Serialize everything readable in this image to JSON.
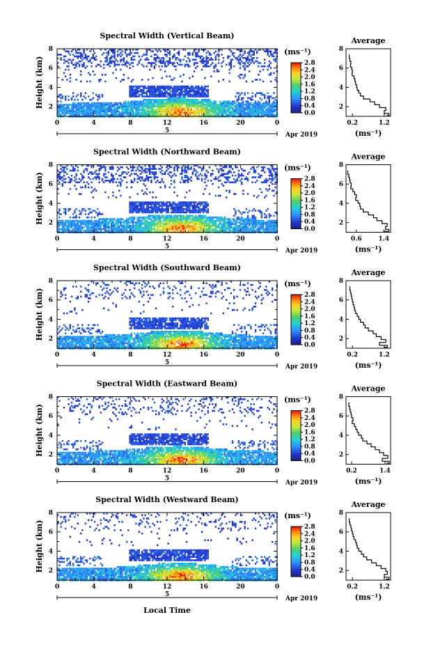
{
  "figure": {
    "xlabel": "Local Time",
    "date_label": "Apr 2019",
    "day_label": "5"
  },
  "chart_data": [
    {
      "type": "heatmap",
      "title": "Spectral Width (Vertical Beam)",
      "ylabel": "Height (km)",
      "xlim": [
        0,
        24
      ],
      "ylim": [
        1,
        8
      ],
      "xticks": [
        "0",
        "4",
        "8",
        "12",
        "16",
        "20",
        "0"
      ],
      "yticks": [
        "2",
        "4",
        "6",
        "8"
      ],
      "cbar": {
        "unit": "(ms⁻¹)",
        "ticks": [
          "0.0",
          "0.4",
          "0.8",
          "1.2",
          "1.6",
          "2.0",
          "2.4",
          "2.8"
        ]
      },
      "profile": {
        "title": "Average",
        "xlabel": "(ms⁻¹)",
        "xticks": [
          "0.2",
          "1.2"
        ],
        "yticks": [
          "2",
          "4",
          "6",
          "8"
        ],
        "xlim": [
          0,
          1.4
        ],
        "ylim": [
          1,
          8
        ],
        "x": [
          0.1,
          0.12,
          0.15,
          0.14,
          0.18,
          0.2,
          0.19,
          0.25,
          0.28,
          0.3,
          0.33,
          0.35,
          0.4,
          0.45,
          0.55,
          0.75,
          0.9,
          1.05,
          1.25,
          1.2,
          1.35,
          1.28
        ],
        "y": [
          7.4,
          7.0,
          6.7,
          6.4,
          6.1,
          5.8,
          5.5,
          5.2,
          4.9,
          4.6,
          4.3,
          4.0,
          3.7,
          3.4,
          3.1,
          2.8,
          2.5,
          2.2,
          1.9,
          1.6,
          1.3,
          1.1
        ]
      }
    },
    {
      "type": "heatmap",
      "title": "Spectral Width (Northward Beam)",
      "ylabel": "Height (km)",
      "xlim": [
        0,
        24
      ],
      "ylim": [
        1,
        8
      ],
      "xticks": [
        "0",
        "4",
        "8",
        "12",
        "16",
        "20",
        "0"
      ],
      "yticks": [
        "2",
        "4",
        "6",
        "8"
      ],
      "cbar": {
        "unit": "(ms⁻¹)",
        "ticks": [
          "0.0",
          "0.4",
          "0.8",
          "1.2",
          "1.6",
          "2.0",
          "2.4",
          "2.8"
        ]
      },
      "profile": {
        "title": "Average",
        "xlabel": "(ms⁻¹)",
        "xticks": [
          "0.6",
          "1.4"
        ],
        "yticks": [
          "2",
          "4",
          "6",
          "8"
        ],
        "xlim": [
          0.3,
          1.6
        ],
        "ylim": [
          1,
          8
        ],
        "x": [
          0.35,
          0.38,
          0.4,
          0.42,
          0.45,
          0.44,
          0.5,
          0.55,
          0.6,
          0.58,
          0.65,
          0.7,
          0.72,
          0.8,
          0.95,
          1.1,
          1.2,
          1.35,
          1.5,
          1.45,
          1.55,
          1.4
        ],
        "y": [
          7.4,
          7.0,
          6.7,
          6.4,
          6.1,
          5.8,
          5.5,
          5.2,
          4.9,
          4.6,
          4.3,
          4.0,
          3.7,
          3.4,
          3.1,
          2.8,
          2.5,
          2.2,
          1.9,
          1.6,
          1.3,
          1.1
        ]
      }
    },
    {
      "type": "heatmap",
      "title": "Spectral Width (Southward Beam)",
      "ylabel": "Height (km)",
      "xlim": [
        0,
        24
      ],
      "ylim": [
        1,
        8
      ],
      "xticks": [
        "0",
        "4",
        "8",
        "12",
        "16",
        "20",
        "0"
      ],
      "yticks": [
        "2",
        "4",
        "6",
        "8"
      ],
      "cbar": {
        "unit": "(ms⁻¹)",
        "ticks": [
          "0.0",
          "0.4",
          "0.8",
          "1.2",
          "1.6",
          "2.0",
          "2.4",
          "2.8"
        ]
      },
      "profile": {
        "title": "Average",
        "xlabel": "(ms⁻¹)",
        "xticks": [
          "0.2",
          "1.2"
        ],
        "yticks": [
          "2",
          "4",
          "6",
          "8"
        ],
        "xlim": [
          0,
          1.4
        ],
        "ylim": [
          1,
          8
        ],
        "x": [
          0.12,
          0.14,
          0.16,
          0.18,
          0.2,
          0.22,
          0.25,
          0.27,
          0.3,
          0.35,
          0.4,
          0.45,
          0.55,
          0.6,
          0.7,
          0.85,
          0.95,
          1.1,
          1.25,
          1.05,
          1.3,
          1.2
        ],
        "y": [
          7.4,
          7.0,
          6.7,
          6.4,
          6.1,
          5.8,
          5.5,
          5.2,
          4.9,
          4.6,
          4.3,
          4.0,
          3.7,
          3.4,
          3.1,
          2.8,
          2.5,
          2.2,
          1.9,
          1.6,
          1.3,
          1.1
        ]
      }
    },
    {
      "type": "heatmap",
      "title": "Spectral Width (Eastward Beam)",
      "ylabel": "Height (km)",
      "xlim": [
        0,
        24
      ],
      "ylim": [
        1,
        8
      ],
      "xticks": [
        "0",
        "4",
        "8",
        "12",
        "16",
        "20",
        "0"
      ],
      "yticks": [
        "2",
        "4",
        "6",
        "8"
      ],
      "cbar": {
        "unit": "(ms⁻¹)",
        "ticks": [
          "0.0",
          "0.4",
          "0.8",
          "1.2",
          "1.6",
          "2.0",
          "2.4",
          "2.8"
        ]
      },
      "profile": {
        "title": "Average",
        "xlabel": "(ms⁻¹)",
        "xticks": [
          "0.2",
          "1.4"
        ],
        "yticks": [
          "2",
          "4",
          "6",
          "8"
        ],
        "xlim": [
          0,
          1.6
        ],
        "ylim": [
          1,
          8
        ],
        "x": [
          0.1,
          0.13,
          0.15,
          0.18,
          0.2,
          0.25,
          0.22,
          0.3,
          0.35,
          0.4,
          0.45,
          0.55,
          0.6,
          0.75,
          0.9,
          1.05,
          1.2,
          1.35,
          1.5,
          1.3,
          1.55,
          1.45
        ],
        "y": [
          7.4,
          7.0,
          6.7,
          6.4,
          6.1,
          5.8,
          5.5,
          5.2,
          4.9,
          4.6,
          4.3,
          4.0,
          3.7,
          3.4,
          3.1,
          2.8,
          2.5,
          2.2,
          1.9,
          1.6,
          1.3,
          1.1
        ]
      }
    },
    {
      "type": "heatmap",
      "title": "Spectral Width (Westward Beam)",
      "ylabel": "Height (km)",
      "xlim": [
        0,
        24
      ],
      "ylim": [
        1,
        8
      ],
      "xticks": [
        "0",
        "4",
        "8",
        "12",
        "16",
        "20",
        "0"
      ],
      "yticks": [
        "2",
        "4",
        "6",
        "8"
      ],
      "cbar": {
        "unit": "(ms⁻¹)",
        "ticks": [
          "0.0",
          "0.4",
          "0.8",
          "1.2",
          "1.6",
          "2.0",
          "2.4",
          "2.8"
        ]
      },
      "profile": {
        "title": "Average",
        "xlabel": "(ms⁻¹)",
        "xticks": [
          "0.2",
          "1.2"
        ],
        "yticks": [
          "2",
          "4",
          "6",
          "8"
        ],
        "xlim": [
          0,
          1.4
        ],
        "ylim": [
          1,
          8
        ],
        "x": [
          0.1,
          0.12,
          0.15,
          0.17,
          0.2,
          0.22,
          0.25,
          0.3,
          0.33,
          0.35,
          0.4,
          0.48,
          0.55,
          0.65,
          0.8,
          0.95,
          1.1,
          1.25,
          1.3,
          1.2,
          1.35,
          1.25
        ],
        "y": [
          7.4,
          7.0,
          6.7,
          6.4,
          6.1,
          5.8,
          5.5,
          5.2,
          4.9,
          4.6,
          4.3,
          4.0,
          3.7,
          3.4,
          3.1,
          2.8,
          2.5,
          2.2,
          1.9,
          1.6,
          1.3,
          1.1
        ]
      }
    }
  ]
}
